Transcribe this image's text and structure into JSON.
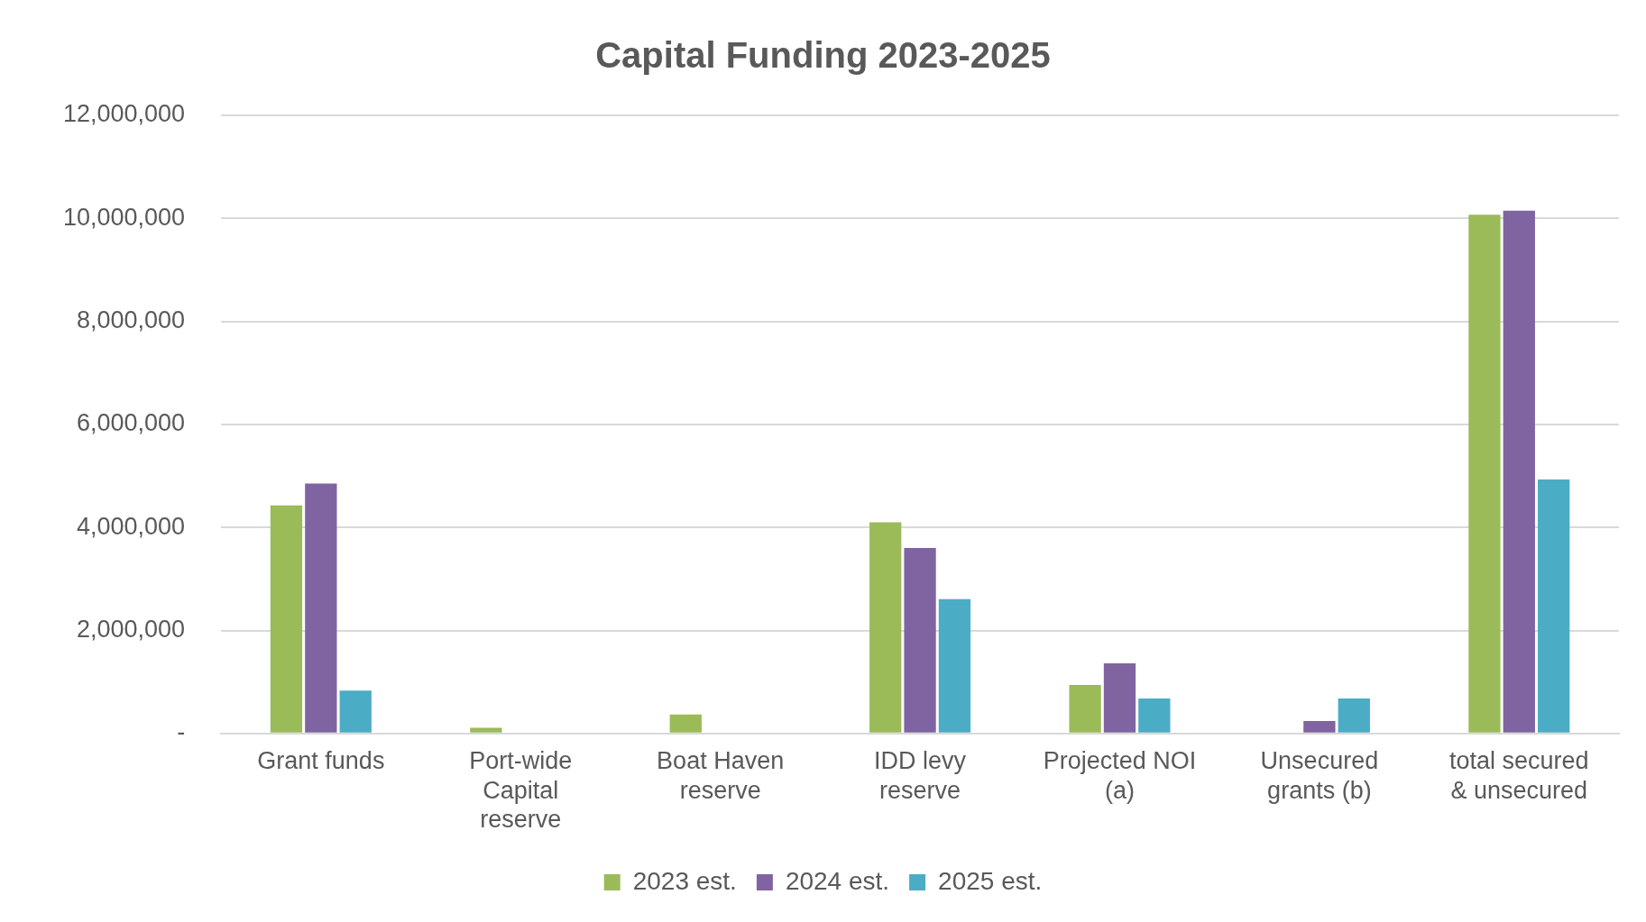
{
  "chart_data": {
    "type": "bar",
    "title": "Capital Funding 2023-2025",
    "categories": [
      "Grant funds",
      "Port-wide Capital reserve",
      "Boat Haven reserve",
      "IDD levy reserve",
      "Projected NOI (a)",
      "Unsecured grants (b)",
      "total secured & unsecured"
    ],
    "series": [
      {
        "name": "2023 est.",
        "color": "#9bbb59",
        "values": [
          4430000,
          110000,
          370000,
          4100000,
          940000,
          0,
          10070000
        ]
      },
      {
        "name": "2024 est.",
        "color": "#8064a2",
        "values": [
          4850000,
          0,
          0,
          3600000,
          1360000,
          240000,
          10150000
        ]
      },
      {
        "name": "2025 est.",
        "color": "#4bacc6",
        "values": [
          830000,
          0,
          0,
          2610000,
          680000,
          680000,
          4930000
        ]
      }
    ],
    "ylim": [
      0,
      12000000
    ],
    "yticks": [
      {
        "value": 0,
        "label": "-"
      },
      {
        "value": 2000000,
        "label": "2,000,000"
      },
      {
        "value": 4000000,
        "label": "4,000,000"
      },
      {
        "value": 6000000,
        "label": "6,000,000"
      },
      {
        "value": 8000000,
        "label": "8,000,000"
      },
      {
        "value": 10000000,
        "label": "10,000,000"
      },
      {
        "value": 12000000,
        "label": "12,000,000"
      }
    ],
    "grid": "y",
    "legend": "bottom"
  }
}
